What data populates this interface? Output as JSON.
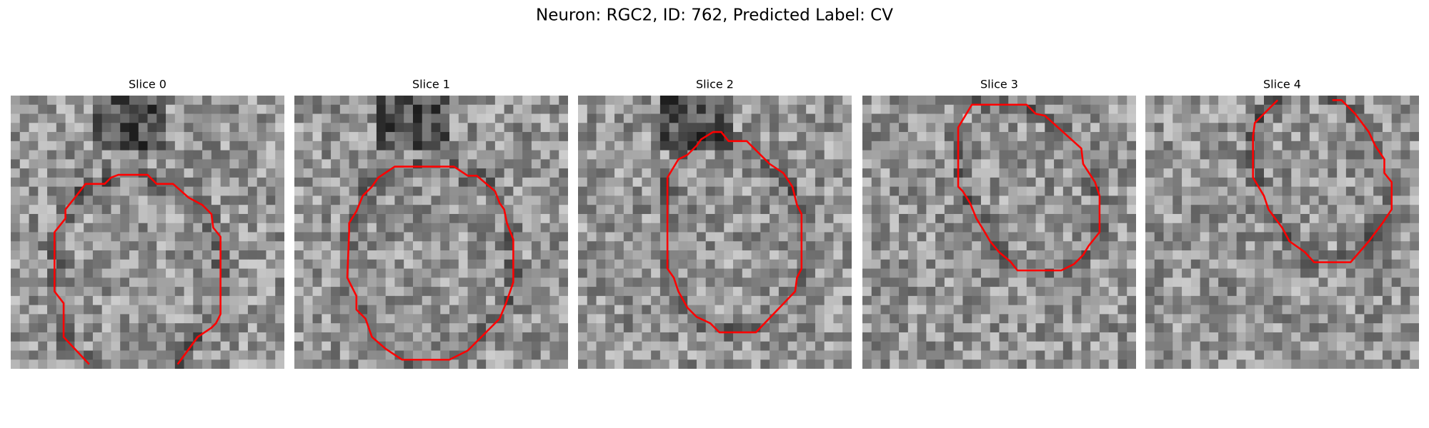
{
  "title": "Neuron: RGC2, ID: 762, Predicted Label: CV",
  "panels": [
    {
      "title": "Slice 0"
    },
    {
      "title": "Slice 1"
    },
    {
      "title": "Slice 2"
    },
    {
      "title": "Slice 3"
    },
    {
      "title": "Slice 4"
    }
  ]
}
